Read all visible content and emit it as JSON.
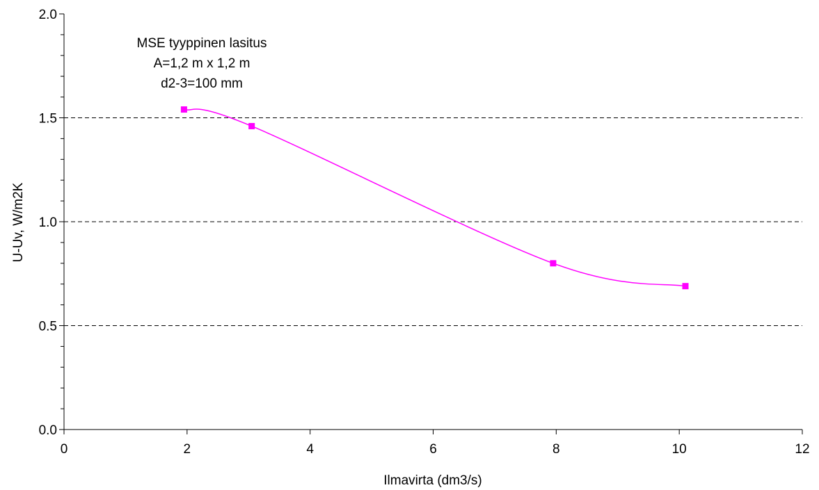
{
  "chart_data": {
    "type": "line",
    "title": "",
    "xlabel": "Ilmavirta (dm3/s)",
    "ylabel": "U-Uv, W/m2K",
    "xlim": [
      0,
      12
    ],
    "ylim": [
      0.0,
      2.0
    ],
    "x_major_ticks": [
      0,
      2,
      4,
      6,
      8,
      10,
      12
    ],
    "x_tick_labels": [
      "0",
      "2",
      "4",
      "6",
      "8",
      "10",
      "12"
    ],
    "y_major_ticks": [
      0.0,
      0.5,
      1.0,
      1.5,
      2.0
    ],
    "y_tick_labels": [
      "0.0",
      "0.5",
      "1.0",
      "1.5",
      "2.0"
    ],
    "y_minor_step": 0.1,
    "gridlines": "horizontal dashed at major y ticks",
    "annotation": [
      "MSE tyyppinen lasitus",
      "A=1,2 m x 1,2 m",
      "d2-3=100 mm"
    ],
    "series": [
      {
        "color": "#ff00ff",
        "marker": "square",
        "smooth": true,
        "points": [
          {
            "x": 1.95,
            "y": 1.54
          },
          {
            "x": 3.05,
            "y": 1.46
          },
          {
            "x": 7.95,
            "y": 0.8
          },
          {
            "x": 10.1,
            "y": 0.69
          }
        ]
      }
    ]
  }
}
